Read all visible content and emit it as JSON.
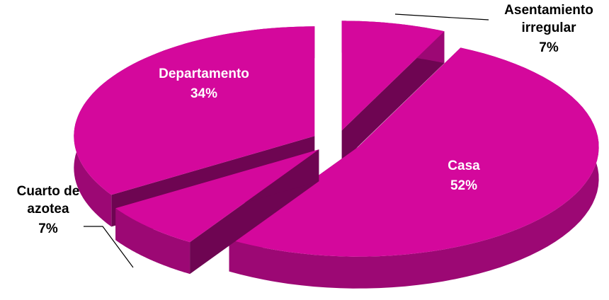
{
  "chart_data": {
    "type": "pie3d",
    "categories": [
      "Asentamiento irregular",
      "Casa",
      "Cuarto de azotea",
      "Departamento"
    ],
    "values": [
      7,
      52,
      7,
      34
    ],
    "value_labels": [
      "7%",
      "52%",
      "7%",
      "34%"
    ],
    "color": "#d4089c"
  }
}
